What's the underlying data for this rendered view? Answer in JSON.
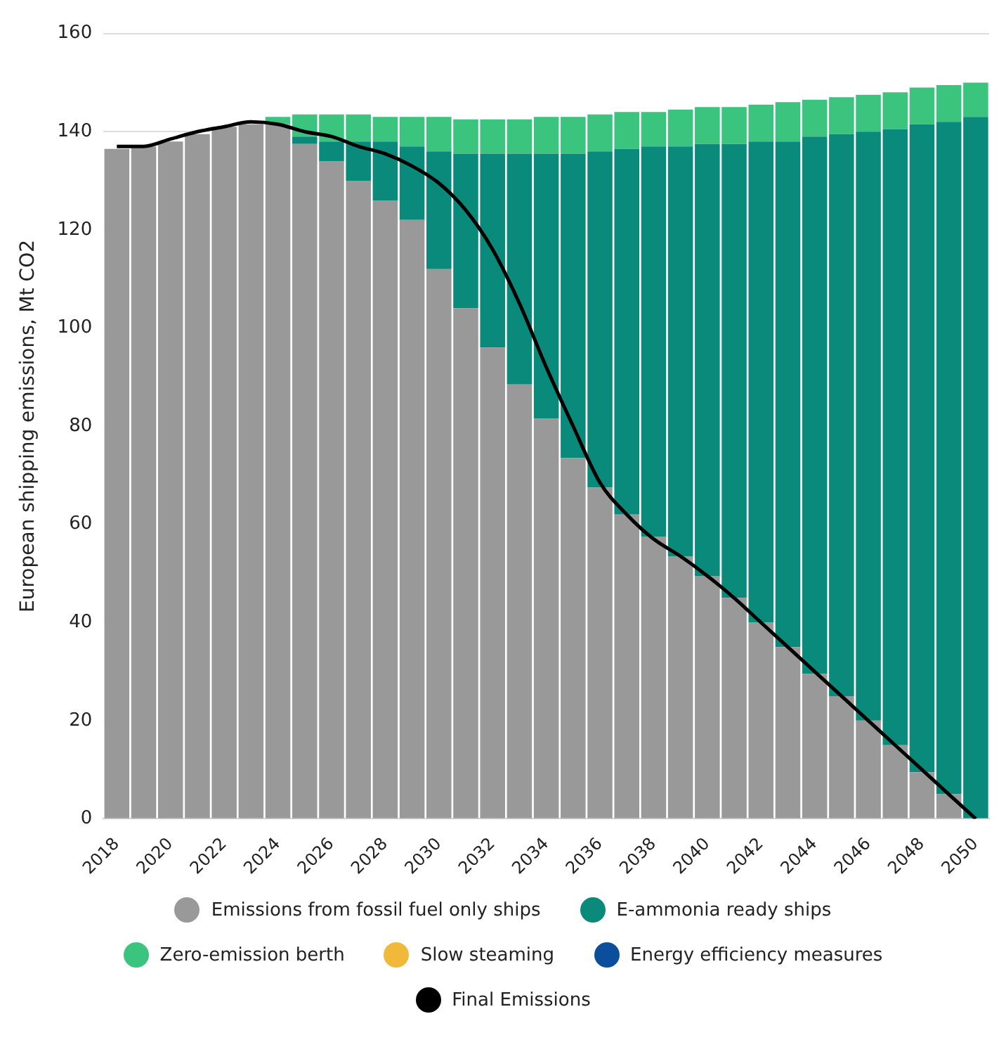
{
  "chart_data": {
    "type": "bar",
    "stacked": true,
    "ylabel": "European shipping emissions, Mt CO2",
    "categories": [
      "2018",
      null,
      "2020",
      null,
      "2022",
      null,
      "2024",
      null,
      "2026",
      null,
      "2028",
      null,
      "2030",
      null,
      "2032",
      null,
      "2034",
      null,
      "2036",
      null,
      "2038",
      null,
      "2040",
      null,
      "2042",
      null,
      "2044",
      null,
      "2046",
      null,
      "2048",
      null,
      "2050"
    ],
    "series": [
      {
        "name": "Emissions from fossil fuel only ships",
        "color": "#999999",
        "values": [
          136.5,
          137,
          138,
          139.5,
          141,
          141.5,
          141.5,
          137.5,
          134,
          130,
          126,
          122,
          112,
          104,
          96,
          88.5,
          81.5,
          73.5,
          67.5,
          62,
          57.5,
          53.5,
          49.5,
          45,
          40,
          35,
          29.5,
          25,
          20,
          15,
          9.5,
          5,
          0
        ]
      },
      {
        "name": "E-ammonia ready ships",
        "color": "#0a8a7a",
        "values": [
          0,
          0,
          0,
          0,
          0,
          0,
          0,
          1.5,
          4,
          8,
          12,
          15,
          24,
          31.5,
          39.5,
          47,
          54,
          62,
          68.5,
          74.5,
          79.5,
          83.5,
          88,
          92.5,
          98,
          103,
          109.5,
          114.5,
          120,
          125.5,
          132,
          137,
          143
        ]
      },
      {
        "name": "Zero-emission berth",
        "color": "#3ac47d",
        "values": [
          0,
          0,
          0,
          0,
          0,
          0,
          1.5,
          4.5,
          5.5,
          5.5,
          5,
          6,
          7,
          7,
          7,
          7,
          7.5,
          7.5,
          7.5,
          7.5,
          7,
          7.5,
          7.5,
          7.5,
          7.5,
          8,
          7.5,
          7.5,
          7.5,
          7.5,
          7.5,
          7.5,
          7
        ]
      },
      {
        "name": "Slow steaming",
        "color": "#f0b93a",
        "values": [
          0,
          0,
          0,
          0,
          0,
          0,
          0,
          0,
          0,
          0,
          0,
          0,
          0,
          0,
          0,
          0,
          0,
          0,
          0,
          0,
          0,
          0,
          0,
          0,
          0,
          0,
          0,
          0,
          0,
          0,
          0,
          0,
          0
        ]
      },
      {
        "name": "Energy efficiency measures",
        "color": "#0b4f9c",
        "values": [
          0,
          0,
          0,
          0,
          0,
          0,
          0,
          0,
          0,
          0,
          0,
          0,
          0,
          0,
          0,
          0,
          0,
          0,
          0,
          0,
          0,
          0,
          0,
          0,
          0,
          0,
          0,
          0,
          0,
          0,
          0,
          0,
          0
        ]
      },
      {
        "name": "Final Emissions",
        "type": "line",
        "color": "#000000",
        "values": [
          137,
          137,
          138.5,
          140,
          141,
          142,
          141.5,
          140,
          139,
          137,
          135.5,
          133,
          129.5,
          124,
          116,
          105,
          92,
          80,
          68.5,
          62,
          57,
          53.5,
          49.5,
          45,
          40,
          35,
          30,
          25,
          20,
          15,
          10,
          5,
          0
        ]
      }
    ],
    "ylim": [
      0,
      160
    ],
    "yticks": [
      0,
      20,
      40,
      60,
      80,
      100,
      120,
      140,
      160
    ],
    "grid": "y",
    "legend": "bottom",
    "marker": "none"
  }
}
